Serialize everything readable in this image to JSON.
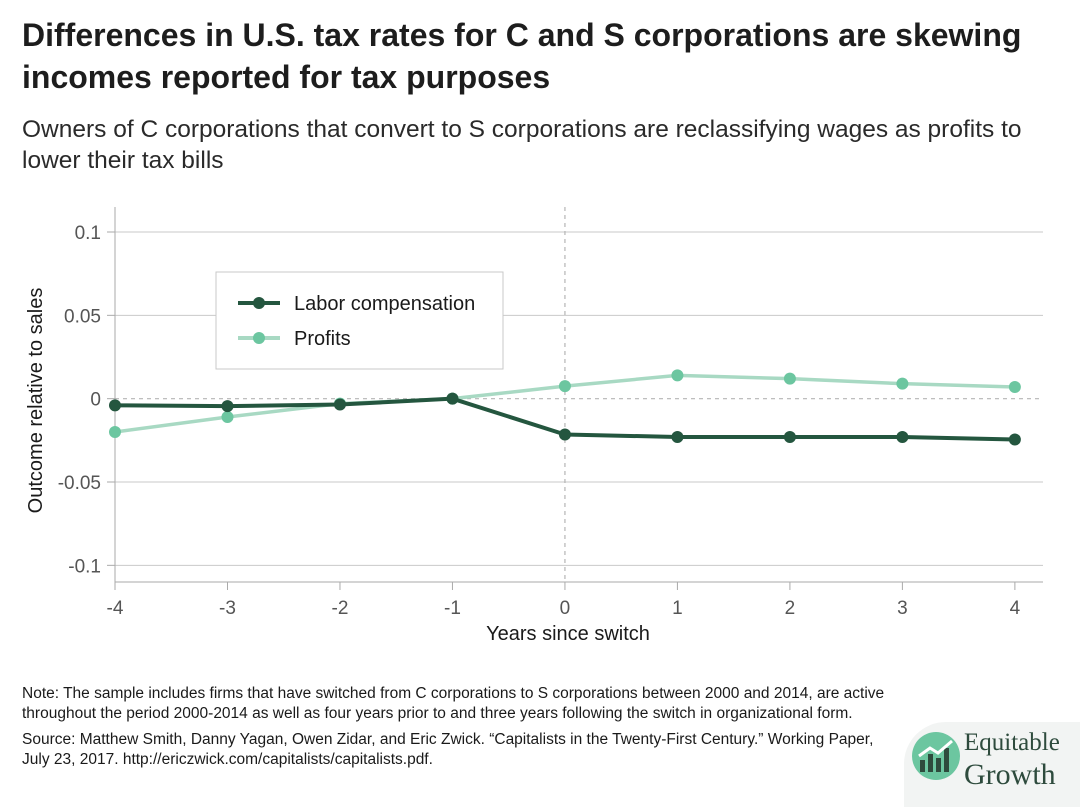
{
  "header": {
    "title": "Differences in U.S. tax rates for C and S corporations are skewing incomes reported for tax purposes",
    "subtitle": "Owners of C corporations that convert to S corporations are reclassifying wages as profits to lower their tax bills"
  },
  "chart_data": {
    "type": "line",
    "xlabel": "Years since switch",
    "ylabel": "Outcome relative to sales",
    "x": [
      -4,
      -3,
      -2,
      -1,
      0,
      1,
      2,
      3,
      4
    ],
    "x_tick_labels": [
      "-4",
      "-3",
      "-2",
      "-1",
      "0",
      "1",
      "2",
      "3",
      "4"
    ],
    "y_ticks": [
      0.1,
      0.05,
      0,
      -0.05,
      -0.1
    ],
    "y_tick_labels": [
      "0.1",
      "0.05",
      "0",
      "-0.05",
      "-0.1"
    ],
    "ylim": [
      -0.11,
      0.115
    ],
    "xlim": [
      -4,
      4.25
    ],
    "grid": "horizontal",
    "reference_lines": {
      "x": 0,
      "y": 0
    },
    "legend_position": "top-left",
    "series": [
      {
        "name": "Labor compensation",
        "color": "#24563f",
        "values": [
          -0.004,
          -0.0045,
          -0.0035,
          0.0,
          -0.0215,
          -0.023,
          -0.023,
          -0.023,
          -0.0245
        ]
      },
      {
        "name": "Profits",
        "color": "#a8d9c3",
        "marker_color": "#6cc6a0",
        "values": [
          -0.02,
          -0.011,
          -0.003,
          0.0,
          0.0075,
          0.014,
          0.012,
          0.009,
          0.007
        ]
      }
    ]
  },
  "notes": {
    "note": "Note: The sample includes firms that have switched from C corporations to S corporations between 2000 and 2014, are active throughout the period 2000-2014 as well as four years prior to and three years following the switch in organizational form.",
    "source": "Source: Matthew Smith, Danny Yagan, Owen Zidar, and Eric Zwick. “Capitalists in the Twenty-First Century.” Working Paper, July 23, 2017. http://ericzwick.com/capitalists/capitalists.pdf."
  },
  "logo": {
    "line1": "Equitable",
    "line2": "Growth",
    "icon": "growth-chart-logo-icon"
  }
}
